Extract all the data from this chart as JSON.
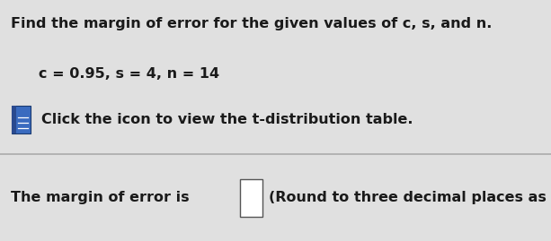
{
  "bg_color": "#e0e0e0",
  "title_text": "Find the margin of error for the given values of c, s, and n.",
  "values_text": "c = 0.95, s = 4, n = 14",
  "icon_text": "Click the icon to view the t-distribution table.",
  "answer_text": "The margin of error is",
  "round_text": "(Round to three decimal places as needed",
  "title_fontsize": 11.5,
  "values_fontsize": 11.5,
  "icon_fontsize": 11.5,
  "answer_fontsize": 11.5,
  "text_color": "#1a1a1a",
  "icon_color_blue": "#3a6bbf",
  "icon_color_dark": "#2a4a8f",
  "sep_color": "#aaaaaa"
}
